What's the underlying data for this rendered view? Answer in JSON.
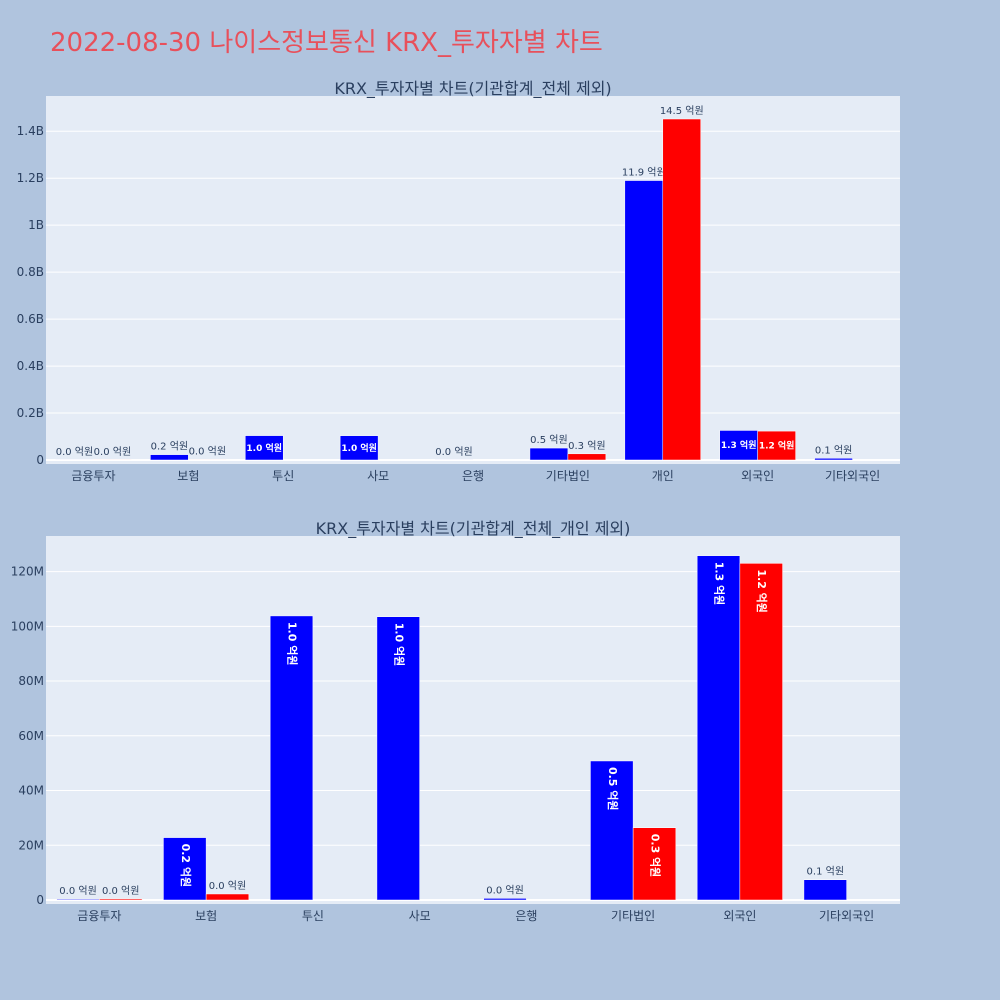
{
  "title": "2022-08-30 나이스정보통신 KRX_투자자별 차트",
  "colors": {
    "title": "#e8505b",
    "background": "#b0c4de",
    "plot_bg": "#e5ecf6",
    "buy": "#0000ff",
    "sell": "#ff0000"
  },
  "chart_data": [
    {
      "type": "bar",
      "title": "KRX_투자자별 차트(기관합계_전체 제외)",
      "categories": [
        "금융투자",
        "보험",
        "투신",
        "사모",
        "은행",
        "기타법인",
        "개인",
        "외국인",
        "기타외국인"
      ],
      "ylim": [
        0,
        1550000000
      ],
      "yticks": [
        0,
        200000000,
        400000000,
        600000000,
        800000000,
        1000000000,
        1200000000,
        1400000000
      ],
      "ytick_labels": [
        "0",
        "0.2B",
        "0.4B",
        "0.6B",
        "0.8B",
        "1B",
        "1.2B",
        "1.4B"
      ],
      "grid": true,
      "series": [
        {
          "values": [
            300000,
            22800000,
            103800000,
            103500000,
            600000,
            50800000,
            1190000000,
            125800000,
            7400000
          ],
          "labels": [
            "0.0 억원",
            "0.2 억원",
            "1.0 억원",
            "1.0 억원",
            "0.0 억원",
            "0.5 억원",
            "11.9 억원",
            "1.3 억원",
            "0.1 억원"
          ]
        },
        {
          "values": [
            400000,
            2200000,
            0,
            0,
            0,
            26400000,
            1452000000,
            123000000,
            0
          ],
          "labels": [
            "0.0 억원",
            "0.0 억원",
            "",
            "",
            "",
            "0.3 억원",
            "14.5 억원",
            "1.2 억원",
            ""
          ]
        }
      ]
    },
    {
      "type": "bar",
      "title": "KRX_투자자별 차트(기관합계_전체_개인 제외)",
      "categories": [
        "금융투자",
        "보험",
        "투신",
        "사모",
        "은행",
        "기타법인",
        "외국인",
        "기타외국인"
      ],
      "ylim": [
        0,
        133000000
      ],
      "yticks": [
        0,
        20000000,
        40000000,
        60000000,
        80000000,
        100000000,
        120000000
      ],
      "ytick_labels": [
        "0",
        "20M",
        "40M",
        "60M",
        "80M",
        "100M",
        "120M"
      ],
      "grid": true,
      "series": [
        {
          "values": [
            300000,
            22800000,
            103800000,
            103500000,
            600000,
            50800000,
            125800000,
            7400000
          ],
          "labels": [
            "0.0 억원",
            "0.2 억원",
            "1.0 억원",
            "1.0 억원",
            "0.0 억원",
            "0.5 억원",
            "1.3 억원",
            "0.1 억원"
          ]
        },
        {
          "values": [
            400000,
            2200000,
            0,
            0,
            0,
            26400000,
            123000000,
            0
          ],
          "labels": [
            "0.0 억원",
            "0.0 억원",
            "",
            "",
            "",
            "0.3 억원",
            "1.2 억원",
            ""
          ]
        }
      ]
    }
  ]
}
